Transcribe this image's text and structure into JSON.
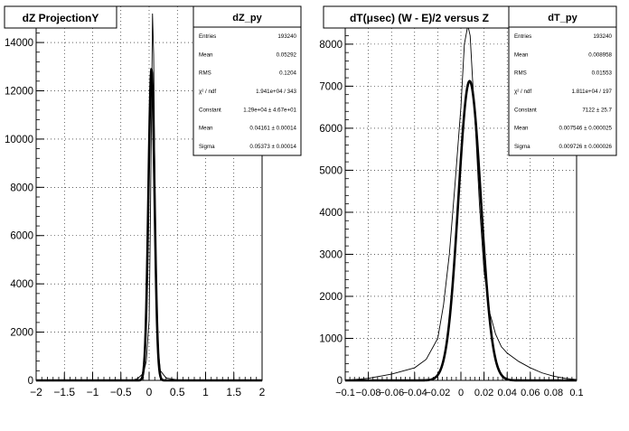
{
  "chart_data": [
    {
      "type": "histogram",
      "title": "dZ ProjectionY",
      "xlim": [
        -2,
        2
      ],
      "ylim": [
        0,
        15500
      ],
      "xticks": [
        -2,
        -1.5,
        -1,
        -0.5,
        0,
        0.5,
        1,
        1.5,
        2
      ],
      "xtick_labels": [
        "−2",
        "−1.5",
        "−1",
        "−0.5",
        "0",
        "0.5",
        "1",
        "1.5",
        "2"
      ],
      "yticks": [
        0,
        2000,
        4000,
        6000,
        8000,
        10000,
        12000,
        14000
      ],
      "ytick_labels": [
        "0",
        "2000",
        "4000",
        "6000",
        "8000",
        "10000",
        "12000",
        "14000"
      ],
      "grid": true,
      "histogram": {
        "x": [
          -0.3,
          -0.2,
          -0.1,
          -0.05,
          0,
          0.02,
          0.04,
          0.06,
          0.08,
          0.1,
          0.12,
          0.15,
          0.2,
          0.3,
          0.5,
          1.0
        ],
        "y": [
          0,
          80,
          300,
          800,
          2500,
          6000,
          10500,
          15200,
          13500,
          9000,
          4000,
          1500,
          400,
          100,
          20,
          0
        ]
      },
      "fit": {
        "constant": 12900,
        "mean": 0.04161,
        "sigma": 0.05373
      },
      "stats": {
        "name": "dZ_py",
        "rows": [
          [
            "Entries",
            "193240"
          ],
          [
            "Mean",
            "0.05292"
          ],
          [
            "RMS",
            "0.1204"
          ],
          [
            "χ² / ndf",
            "1.941e+04 / 343"
          ],
          [
            "Constant",
            "1.29e+04  ± 4.67e+01"
          ],
          [
            "Mean",
            "0.04161  ± 0.00014"
          ],
          [
            "Sigma",
            "0.05373  ± 0.00014"
          ]
        ]
      }
    },
    {
      "type": "histogram",
      "title": "dT(μsec) (W - E)/2 versus Z",
      "xlim": [
        -0.1,
        0.1
      ],
      "ylim": [
        0,
        8900
      ],
      "xticks": [
        -0.1,
        -0.08,
        -0.06,
        -0.04,
        -0.02,
        0,
        0.02,
        0.04,
        0.06,
        0.08,
        0.1
      ],
      "xtick_labels": [
        "−0.1",
        "−0.08",
        "−0.06",
        "−0.04",
        "−0.02",
        "0",
        "0.02",
        "0.04",
        "0.06",
        "0.08",
        "0.1"
      ],
      "yticks": [
        0,
        1000,
        2000,
        3000,
        4000,
        5000,
        6000,
        7000,
        8000
      ],
      "ytick_labels": [
        "0",
        "1000",
        "2000",
        "3000",
        "4000",
        "5000",
        "6000",
        "7000",
        "8000"
      ],
      "grid": true,
      "histogram": {
        "x": [
          -0.1,
          -0.08,
          -0.06,
          -0.04,
          -0.03,
          -0.02,
          -0.015,
          -0.01,
          -0.005,
          0,
          0.003,
          0.006,
          0.008,
          0.01,
          0.013,
          0.016,
          0.02,
          0.025,
          0.03,
          0.035,
          0.04,
          0.05,
          0.06,
          0.07,
          0.08,
          0.09,
          0.1
        ],
        "y": [
          0,
          50,
          150,
          300,
          500,
          1000,
          1800,
          3000,
          4700,
          6500,
          8000,
          8450,
          8200,
          7200,
          5800,
          4200,
          2600,
          1600,
          1100,
          800,
          650,
          450,
          300,
          180,
          100,
          50,
          20
        ]
      },
      "fit": {
        "constant": 7122,
        "mean": 0.007546,
        "sigma": 0.009726
      },
      "stats": {
        "name": "dT_py",
        "rows": [
          [
            "Entries",
            "193240"
          ],
          [
            "Mean",
            "0.008958"
          ],
          [
            "RMS",
            "0.01553"
          ],
          [
            "χ² / ndf",
            "1.811e+04 / 197"
          ],
          [
            "Constant",
            "7122  ± 25.7"
          ],
          [
            "Mean",
            "0.007546  ± 0.000025"
          ],
          [
            "Sigma",
            "0.009726  ± 0.000026"
          ]
        ]
      }
    }
  ]
}
